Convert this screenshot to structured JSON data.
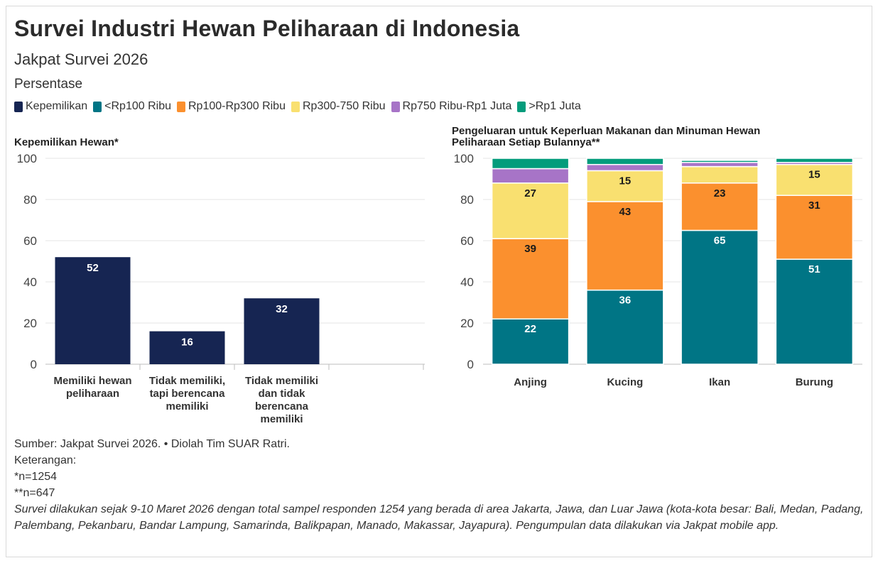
{
  "header": {
    "title": "Survei Industri Hewan Peliharaan di Indonesia",
    "subtitle": "Jakpat Survei 2026",
    "unit_label": "Persentase"
  },
  "legend": [
    {
      "label": "Kepemilikan",
      "color": "#162552"
    },
    {
      "label": "<Rp100 Ribu",
      "color": "#007585"
    },
    {
      "label": "Rp100-Rp300 Ribu",
      "color": "#fb902e"
    },
    {
      "label": "Rp300-750 Ribu",
      "color": "#f9e070"
    },
    {
      "label": "Rp750 Ribu-Rp1 Juta",
      "color": "#a774c7"
    },
    {
      "label": ">Rp1 Juta",
      "color": "#049c7c"
    }
  ],
  "chart_data": [
    {
      "type": "bar",
      "title": "Kepemilikan Hewan*",
      "categories": [
        "Memiliki hewan peliharaan",
        "Tidak memiliki, tapi berencana memiliki",
        "Tidak memiliki dan tidak berencana memiliki"
      ],
      "category_lines": [
        [
          "Memiliki hewan",
          "peliharaan"
        ],
        [
          "Tidak memiliki,",
          "tapi berencana",
          "memiliki"
        ],
        [
          "Tidak memiliki",
          "dan tidak",
          "berencana",
          "memiliki"
        ]
      ],
      "series": [
        {
          "name": "Kepemilikan",
          "values": [
            52,
            16,
            32
          ],
          "color": "#162552"
        }
      ],
      "ylim": [
        0,
        100
      ],
      "yticks": [
        0,
        20,
        40,
        60,
        80,
        100
      ],
      "grid": true
    },
    {
      "type": "bar",
      "stacked": true,
      "title": "Pengeluaran untuk Keperluan Makanan dan Minuman Hewan Peliharaan Setiap Bulannya**",
      "title_lines": [
        "Pengeluaran untuk Keperluan Makanan dan Minuman Hewan",
        "Peliharaan Setiap Bulannya**"
      ],
      "categories": [
        "Anjing",
        "Kucing",
        "Ikan",
        "Burung"
      ],
      "series": [
        {
          "name": "<Rp100 Ribu",
          "values": [
            22,
            36,
            65,
            51
          ],
          "color": "#007585",
          "label_color": "#ffffff"
        },
        {
          "name": "Rp100-Rp300 Ribu",
          "values": [
            39,
            43,
            23,
            31
          ],
          "color": "#fb902e",
          "label_color": "#1a1a1a"
        },
        {
          "name": "Rp300-750 Ribu",
          "values": [
            27,
            15,
            8,
            15
          ],
          "color": "#f9e070",
          "label_color": "#1a1a1a"
        },
        {
          "name": "Rp750 Ribu-Rp1 Juta",
          "values": [
            7,
            3,
            2,
            1
          ],
          "color": "#a774c7",
          "label_color": "#1a1a1a"
        },
        {
          "name": ">Rp1 Juta",
          "values": [
            5,
            3,
            1,
            2
          ],
          "color": "#049c7c",
          "label_color": "#ffffff"
        }
      ],
      "min_labeled_value": 10,
      "ylim": [
        0,
        100
      ],
      "yticks": [
        0,
        20,
        40,
        60,
        80,
        100
      ],
      "grid": true
    }
  ],
  "footer": {
    "source": "Sumber: Jakpat Survei 2026. • Diolah Tim SUAR Ratri.",
    "notes_label": "Keterangan:",
    "note_1": "*n=1254",
    "note_2": "**n=647",
    "methodology": "Survei dilakukan sejak 9-10 Maret 2026 dengan total sampel responden 1254 yang berada di area Jakarta, Jawa, dan Luar Jawa (kota-kota besar: Bali, Medan, Padang, Palembang, Pekanbaru, Bandar Lampung, Samarinda, Balikpapan, Manado, Makassar, Jayapura). Pengumpulan data dilakukan via Jakpat mobile app."
  }
}
